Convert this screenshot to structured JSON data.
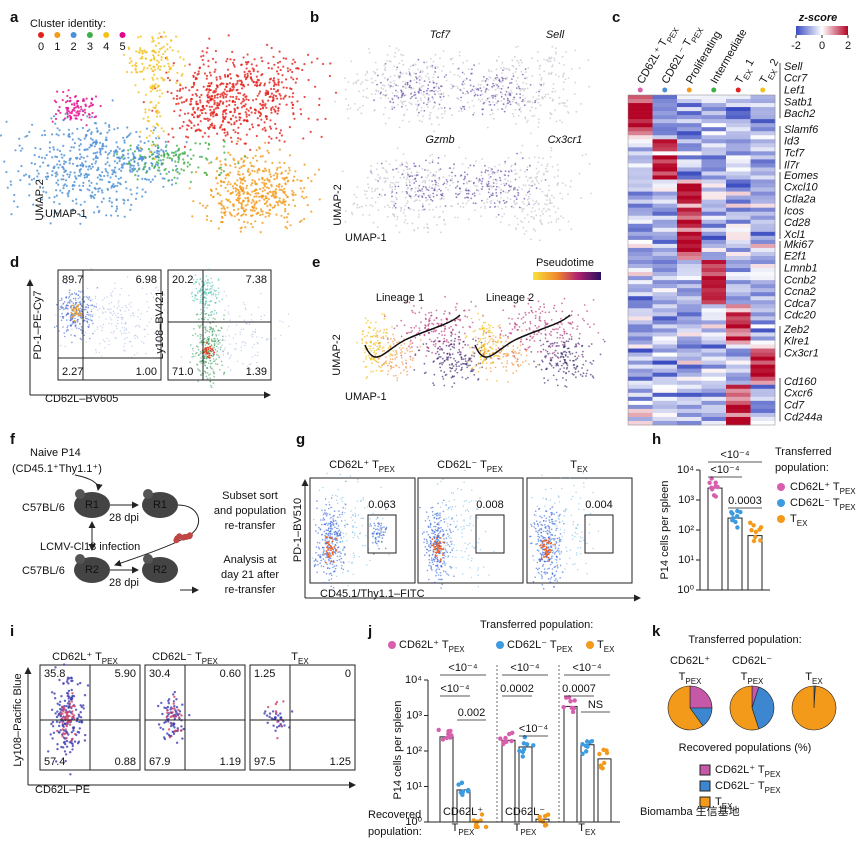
{
  "panels": {
    "a": {
      "letter": "a",
      "legend_title": "Cluster identity:",
      "clusters": [
        {
          "label": "0",
          "color": "#e3211c"
        },
        {
          "label": "1",
          "color": "#f39a1a"
        },
        {
          "label": "2",
          "color": "#4b8fd6"
        },
        {
          "label": "3",
          "color": "#3daf45"
        },
        {
          "label": "4",
          "color": "#f2c21b"
        },
        {
          "label": "5",
          "color": "#e5048b"
        }
      ],
      "x_label": "UMAP-1",
      "y_label": "UMAP-2"
    },
    "b": {
      "letter": "b",
      "genes": [
        "Tcf7",
        "Sell",
        "Gzmb",
        "Cx3cr1"
      ],
      "x_label": "UMAP-1",
      "y_label": "UMAP-2"
    },
    "c": {
      "letter": "c",
      "scale_title": "z-score",
      "scale_ticks": [
        -2,
        0,
        2
      ],
      "columns": [
        {
          "label": {
            "text": "CD62L⁺ T",
            "sub": "PEX"
          },
          "color": "#d75fae"
        },
        {
          "label": {
            "text": "CD62L⁻ T",
            "sub": "PEX"
          },
          "color": "#4b8fd6"
        },
        {
          "label": {
            "text": "Proliferating"
          },
          "color": "#f39a1a"
        },
        {
          "label": {
            "text": "Intermediate"
          },
          "color": "#3daf45"
        },
        {
          "label": {
            "text": "T",
            "sub": "EX",
            "tail": " 1"
          },
          "color": "#e3211c"
        },
        {
          "label": {
            "text": "T",
            "sub": "EX",
            "tail": " 2"
          },
          "color": "#f2c21b"
        }
      ],
      "gene_groups": [
        [
          "Sell",
          "Ccr7",
          "Lef1",
          "Satb1",
          "Bach2"
        ],
        [
          "Slamf6",
          "Id3",
          "Tcf7",
          "Il7r"
        ],
        [
          "Eomes",
          "Cxcl10",
          "Ctla2a",
          "Icos",
          "Cd28",
          "Xcl1"
        ],
        [
          "Mki67",
          "E2f1",
          "Lmnb1",
          "Ccnb2",
          "Ccna2",
          "Cdca7",
          "Cdc20"
        ],
        [
          "Zeb2",
          "Klre1",
          "Cx3cr1"
        ],
        [
          "Cd160",
          "Cxcr6",
          "Cd7",
          "Cd244a"
        ]
      ]
    },
    "d": {
      "letter": "d",
      "plots": [
        {
          "y_label": "PD-1–PE-Cy7",
          "quadrants": [
            "89.7",
            "6.98",
            "2.27",
            "1.00"
          ]
        },
        {
          "y_label": "Ly108–BV421",
          "quadrants": [
            "20.2",
            "7.38",
            "71.0",
            "1.39"
          ]
        }
      ],
      "x_label": "CD62L–BV605"
    },
    "e": {
      "letter": "e",
      "legend_title": "Pseudotime",
      "lineages": [
        "Lineage 1",
        "Lineage 2"
      ],
      "x_label": "UMAP-1",
      "y_label": "UMAP-2"
    },
    "f": {
      "letter": "f",
      "donor": [
        "Naive P14",
        "(CD45.1⁺Thy1.1⁺)"
      ],
      "hosts": [
        "C57BL/6",
        "C57BL/6"
      ],
      "mice": [
        "R1",
        "R1",
        "R2",
        "R2"
      ],
      "time": [
        "28 dpi",
        "28 dpi"
      ],
      "infection": "LCMV-Cl13 infection",
      "step1": [
        "Subset sort",
        "and population",
        "re-transfer"
      ],
      "step2": [
        "Analysis at",
        "day 21 after",
        "re-transfer"
      ]
    },
    "g": {
      "letter": "g",
      "plots": [
        {
          "title": {
            "text": "CD62L⁺ T",
            "sub": "PEX"
          },
          "gate": "0.063"
        },
        {
          "title": {
            "text": "CD62L⁻ T",
            "sub": "PEX"
          },
          "gate": "0.008"
        },
        {
          "title": {
            "text": "T",
            "sub": "EX"
          },
          "gate": "0.004"
        }
      ],
      "y_label": "PD-1–BV510",
      "x_label": "CD45.1/Thy1.1–FITC"
    },
    "h": {
      "letter": "h",
      "type": "bar",
      "y_label": "P14 cells per spleen",
      "log_scale": true,
      "ylim": [
        1,
        10000
      ],
      "yticks": [
        {
          "value": 1,
          "label": "10⁰"
        },
        {
          "value": 10,
          "label": "10¹"
        },
        {
          "value": 100,
          "label": "10²"
        },
        {
          "value": 1000,
          "label": "10³"
        },
        {
          "value": 10000,
          "label": "10⁴"
        }
      ],
      "series": [
        {
          "name": {
            "text": "CD62L⁺ T",
            "sub": "PEX"
          },
          "color": "#d75fae",
          "value": 2500
        },
        {
          "name": {
            "text": "CD62L⁻ T",
            "sub": "PEX"
          },
          "color": "#3d9be0",
          "value": 250
        },
        {
          "name": {
            "text": "T",
            "sub": "EX"
          },
          "color": "#f39a1a",
          "value": 65
        }
      ],
      "significance": [
        "<10⁻⁴",
        "<10⁻⁴",
        "0.0003"
      ],
      "legend_title": [
        "Transferred",
        "population:"
      ]
    },
    "i": {
      "letter": "i",
      "plots": [
        {
          "title": {
            "text": "CD62L⁺ T",
            "sub": "PEX"
          },
          "quadrants": [
            "35.8",
            "5.90",
            "57.4",
            "0.88"
          ]
        },
        {
          "title": {
            "text": "CD62L⁻ T",
            "sub": "PEX"
          },
          "quadrants": [
            "30.4",
            "0.60",
            "67.9",
            "1.19"
          ]
        },
        {
          "title": {
            "text": "T",
            "sub": "EX"
          },
          "quadrants": [
            "1.25",
            "0",
            "97.5",
            "1.25"
          ]
        }
      ],
      "y_label": "Ly108–Pacific Blue",
      "x_label": "CD62L–PE"
    },
    "j": {
      "letter": "j",
      "type": "bar",
      "legend_title": "Transferred population:",
      "y_label": "P14 cells per spleen",
      "log_scale": true,
      "ylim": [
        1,
        10000
      ],
      "yticks": [
        {
          "value": 1,
          "label": "10⁰"
        },
        {
          "value": 10,
          "label": "10¹"
        },
        {
          "value": 100,
          "label": "10²"
        },
        {
          "value": 1000,
          "label": "10³"
        },
        {
          "value": 10000,
          "label": "10⁴"
        }
      ],
      "categories": [
        {
          "line1": "CD62L⁺",
          "text": "T",
          "sub": "PEX"
        },
        {
          "line1": "CD62L⁻",
          "text": "T",
          "sub": "PEX"
        },
        {
          "text": "T",
          "sub": "EX"
        }
      ],
      "series": [
        {
          "name": {
            "text": "CD62L⁺ T",
            "sub": "PEX"
          },
          "color": "#d75fae",
          "values": [
            250,
            200,
            1800
          ]
        },
        {
          "name": {
            "text": "CD62L⁻ T",
            "sub": "PEX"
          },
          "color": "#3d9be0",
          "values": [
            8,
            130,
            150
          ]
        },
        {
          "name": {
            "text": "T",
            "sub": "EX"
          },
          "color": "#f39a1a",
          "values": [
            1,
            1.2,
            60
          ]
        }
      ],
      "significance": [
        [
          "<10⁻⁴",
          "<10⁻⁴",
          "0.002"
        ],
        [
          "<10⁻⁴",
          "0.0002",
          "<10⁻⁴"
        ],
        [
          "<10⁻⁴",
          "0.0007",
          "NS"
        ]
      ],
      "x_title": [
        "Recovered",
        "population:"
      ]
    },
    "k": {
      "letter": "k",
      "type": "pie",
      "title": "Transferred population:",
      "legend_title": "Recovered populations (%)",
      "series": [
        {
          "name": {
            "text": "CD62L⁺ T",
            "sub": "PEX"
          },
          "color": "#c658a8"
        },
        {
          "name": {
            "text": "CD62L⁻ T",
            "sub": "PEX"
          },
          "color": "#3d87d0"
        },
        {
          "name": {
            "text": "T",
            "sub": "EX"
          },
          "color": "#f39a1a"
        }
      ],
      "pies": [
        {
          "label": {
            "line1": "CD62L⁺",
            "text": "T",
            "sub": "PEX"
          },
          "values": [
            25,
            15,
            60
          ]
        },
        {
          "label": {
            "line1": "CD62L⁻",
            "text": "T",
            "sub": "PEX"
          },
          "values": [
            5,
            40,
            55
          ]
        },
        {
          "label": {
            "text": "T",
            "sub": "EX"
          },
          "values": [
            0,
            1,
            99
          ]
        }
      ]
    },
    "watermark": "Biomamba 生信基地"
  }
}
